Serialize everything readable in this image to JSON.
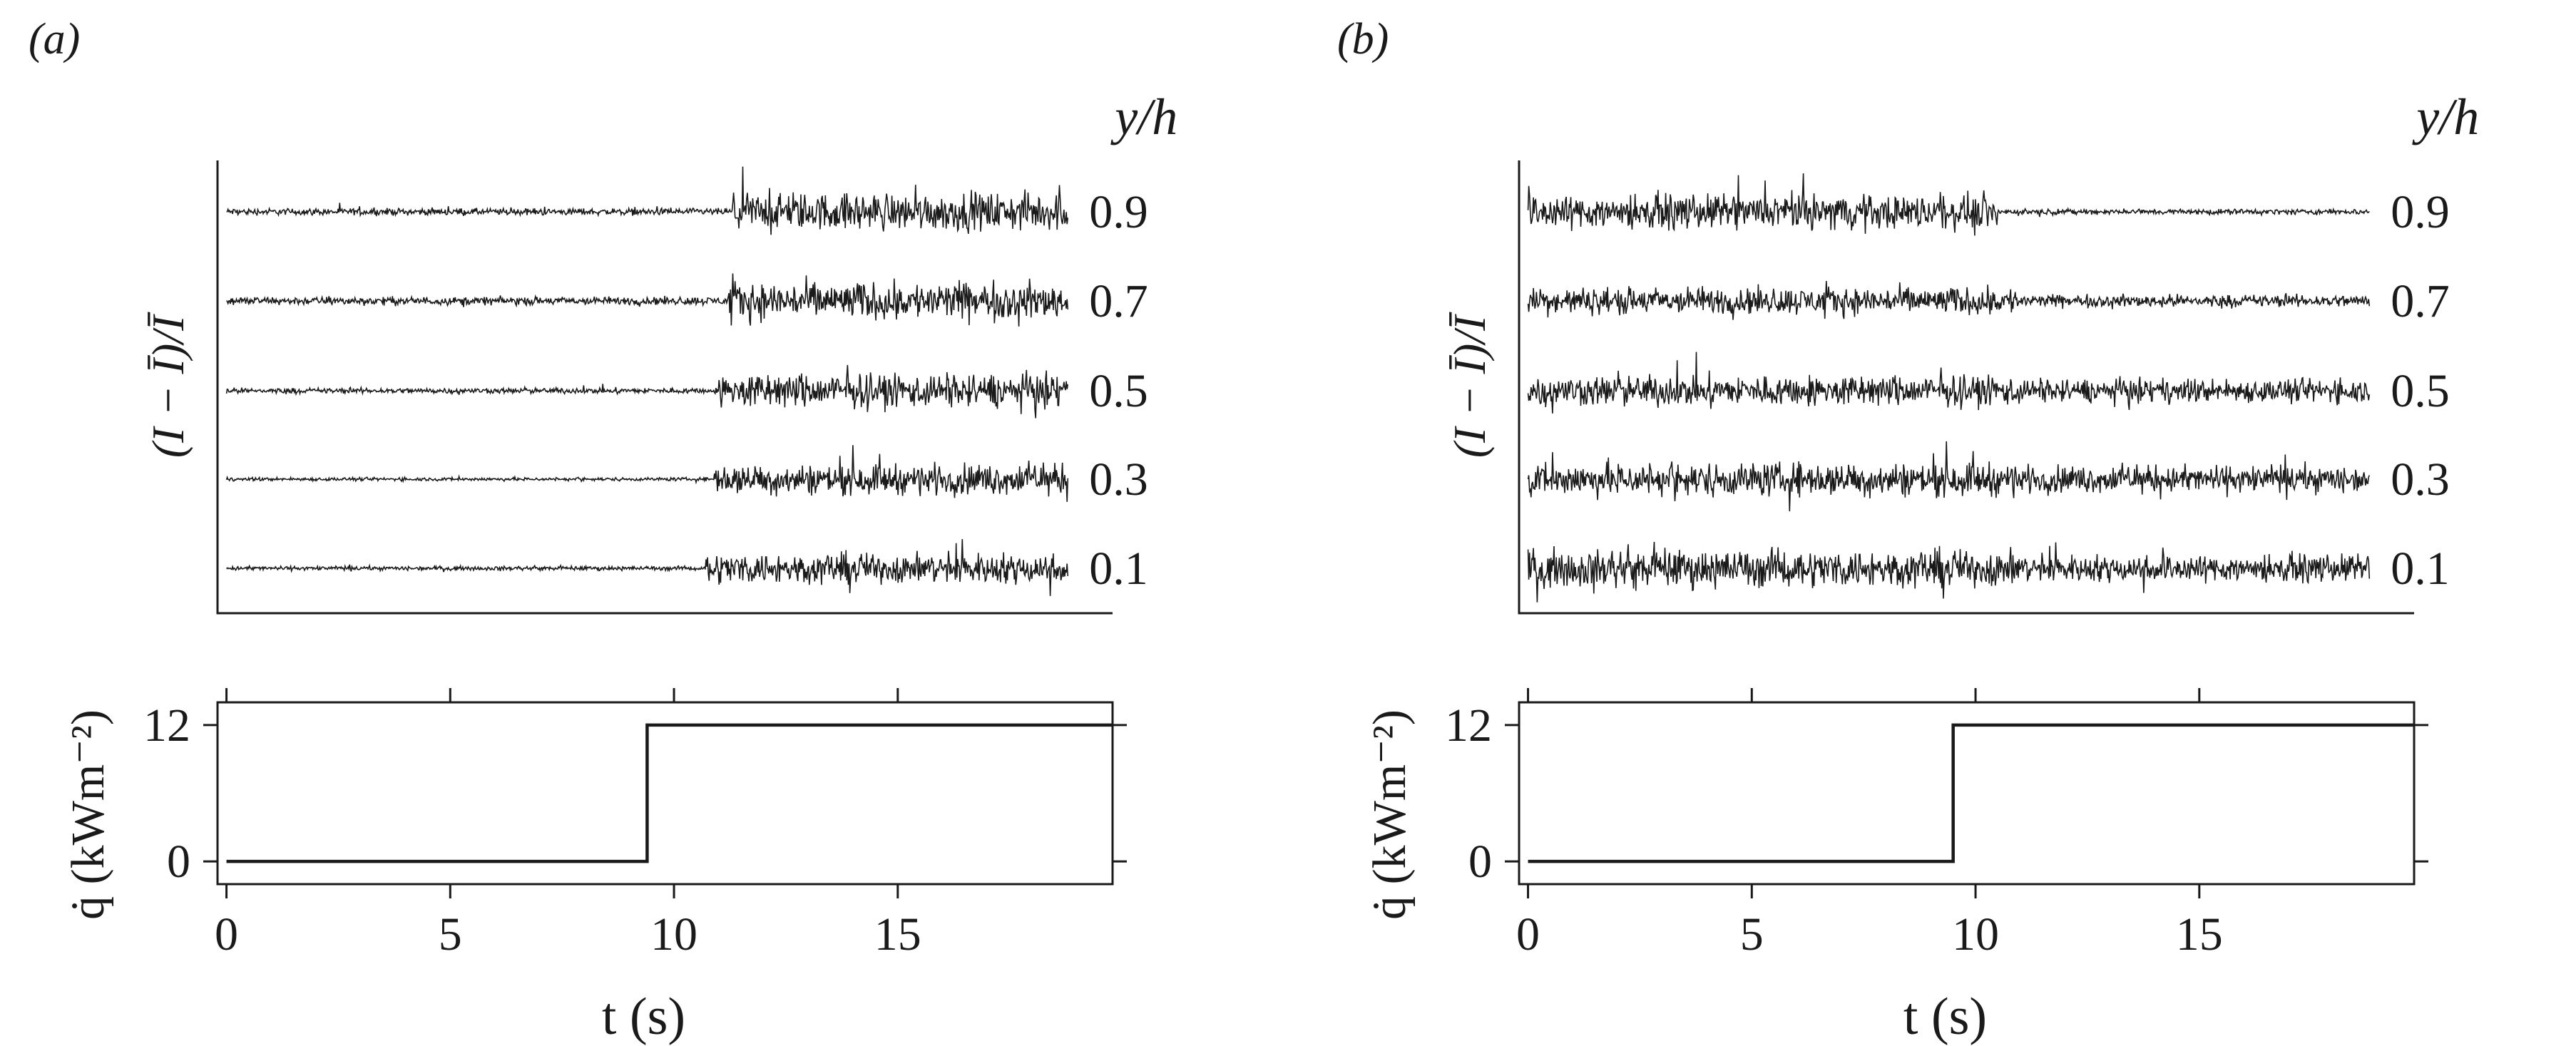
{
  "chart_data": [
    {
      "panel_label": "(a)",
      "type": "line",
      "top": {
        "ylabel": "(I − Ī)/Ī",
        "level_header": "y/h",
        "levels": [
          "0.9",
          "0.7",
          "0.5",
          "0.3",
          "0.1"
        ],
        "x_range": [
          0,
          18.8
        ],
        "series": [
          {
            "level": "0.9",
            "transition_t": 11.3,
            "amp_before": 0.1,
            "amp_after": 0.55
          },
          {
            "level": "0.7",
            "transition_t": 11.2,
            "amp_before": 0.12,
            "amp_after": 0.55
          },
          {
            "level": "0.5",
            "transition_t": 11.0,
            "amp_before": 0.08,
            "amp_after": 0.5
          },
          {
            "level": "0.3",
            "transition_t": 10.9,
            "amp_before": 0.05,
            "amp_after": 0.45
          },
          {
            "level": "0.1",
            "transition_t": 10.7,
            "amp_before": 0.06,
            "amp_after": 0.45
          }
        ]
      },
      "bottom": {
        "xlabel": "t (s)",
        "ylabel": "q̇ (kWm⁻²)",
        "x_ticks": [
          "0",
          "5",
          "10",
          "15"
        ],
        "y_ticks": [
          "0",
          "12"
        ],
        "xlim": [
          -0.2,
          19.8
        ],
        "ylim": [
          -2,
          14
        ],
        "step": {
          "t_on": 9.4,
          "q_before": 0,
          "q_after": 12
        }
      }
    },
    {
      "panel_label": "(b)",
      "type": "line",
      "top": {
        "ylabel": "(I − Ī)/Ī",
        "level_header": "y/h",
        "levels": [
          "0.9",
          "0.7",
          "0.5",
          "0.3",
          "0.1"
        ],
        "x_range": [
          0,
          18.8
        ],
        "series": [
          {
            "level": "0.9",
            "transition_t": 10.5,
            "amp_before": 0.5,
            "amp_after": 0.08
          },
          {
            "level": "0.7",
            "transition_t": 11.0,
            "amp_before": 0.4,
            "amp_after": 0.18
          },
          {
            "level": "0.5",
            "transition_t": 11.0,
            "amp_before": 0.45,
            "amp_after": 0.35
          },
          {
            "level": "0.3",
            "transition_t": 11.0,
            "amp_before": 0.5,
            "amp_after": 0.4
          },
          {
            "level": "0.1",
            "transition_t": 11.0,
            "amp_before": 0.55,
            "amp_after": 0.4
          }
        ]
      },
      "bottom": {
        "xlabel": "t (s)",
        "ylabel": "q̇ (kWm⁻²)",
        "x_ticks": [
          "0",
          "5",
          "10",
          "15"
        ],
        "y_ticks": [
          "0",
          "12"
        ],
        "xlim": [
          -0.2,
          19.8
        ],
        "ylim": [
          -2,
          14
        ],
        "step": {
          "t_on": 9.5,
          "q_before": 0,
          "q_after": 12
        }
      }
    }
  ]
}
